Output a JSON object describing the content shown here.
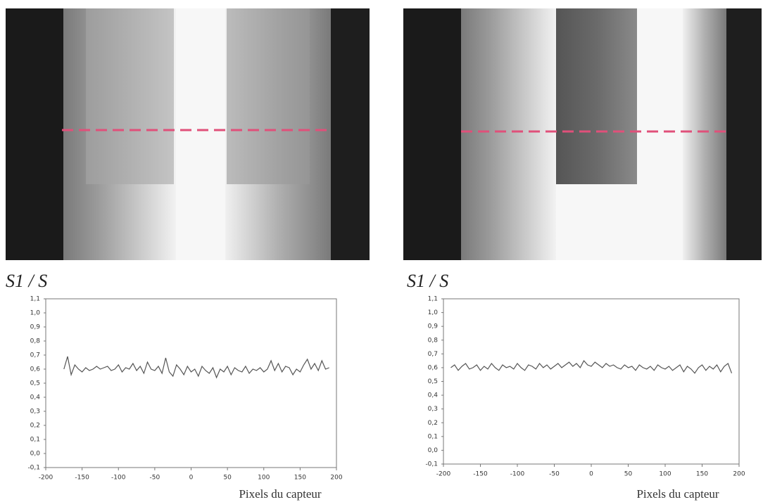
{
  "chart_data": [
    {
      "type": "line",
      "ylabel": "S1 / S",
      "xlabel": "Pixels du capteur",
      "xlim": [
        -200,
        200
      ],
      "xticks": [
        -200,
        -150,
        -100,
        -50,
        0,
        50,
        100,
        150,
        200
      ],
      "ylim": [
        -0.1,
        1.1
      ],
      "yticks": [
        {
          "value": -0.1,
          "label": "-0,1"
        },
        {
          "value": 0,
          "label": "0,0"
        },
        {
          "value": 0.1,
          "label": "0,1"
        },
        {
          "value": 0.2,
          "label": "0,2"
        },
        {
          "value": 0.3,
          "label": "0,3"
        },
        {
          "value": 0.4,
          "label": "0,4"
        },
        {
          "value": 0.5,
          "label": "0,5"
        },
        {
          "value": 0.6,
          "label": "0,6"
        },
        {
          "value": 0.7,
          "label": "0,7"
        },
        {
          "value": 0.8,
          "label": "0,8"
        },
        {
          "value": 0.9,
          "label": "0,9"
        },
        {
          "value": 1.0,
          "label": "1,0"
        },
        {
          "value": 1.1,
          "label": "1,1"
        }
      ],
      "x": [
        -175,
        -170,
        -165,
        -160,
        -155,
        -150,
        -145,
        -140,
        -135,
        -130,
        -125,
        -120,
        -115,
        -110,
        -105,
        -100,
        -95,
        -90,
        -85,
        -80,
        -75,
        -70,
        -65,
        -60,
        -55,
        -50,
        -45,
        -40,
        -35,
        -30,
        -25,
        -20,
        -15,
        -10,
        -5,
        0,
        5,
        10,
        15,
        20,
        25,
        30,
        35,
        40,
        45,
        50,
        55,
        60,
        65,
        70,
        75,
        80,
        85,
        90,
        95,
        100,
        105,
        110,
        115,
        120,
        125,
        130,
        135,
        140,
        145,
        150,
        155,
        160,
        165,
        170,
        175,
        180,
        185,
        190
      ],
      "series": [
        {
          "color": "#555555",
          "values": [
            0.6,
            0.69,
            0.56,
            0.63,
            0.6,
            0.58,
            0.61,
            0.59,
            0.6,
            0.62,
            0.6,
            0.61,
            0.62,
            0.59,
            0.6,
            0.63,
            0.58,
            0.61,
            0.6,
            0.64,
            0.59,
            0.62,
            0.57,
            0.65,
            0.6,
            0.59,
            0.62,
            0.57,
            0.68,
            0.58,
            0.55,
            0.63,
            0.6,
            0.56,
            0.62,
            0.58,
            0.6,
            0.55,
            0.62,
            0.59,
            0.57,
            0.61,
            0.54,
            0.6,
            0.58,
            0.62,
            0.56,
            0.61,
            0.59,
            0.58,
            0.62,
            0.57,
            0.6,
            0.59,
            0.61,
            0.58,
            0.6,
            0.66,
            0.59,
            0.64,
            0.58,
            0.62,
            0.61,
            0.56,
            0.6,
            0.58,
            0.63,
            0.67,
            0.6,
            0.64,
            0.59,
            0.66,
            0.6,
            0.61
          ]
        }
      ]
    },
    {
      "type": "line",
      "ylabel": "S1 / S",
      "xlabel": "Pixels du capteur",
      "xlim": [
        -200,
        200
      ],
      "xticks": [
        -200,
        -150,
        -100,
        -50,
        0,
        50,
        100,
        150,
        200
      ],
      "ylim": [
        -0.1,
        1.1
      ],
      "yticks": [
        {
          "value": -0.1,
          "label": "-0,1"
        },
        {
          "value": 0,
          "label": "0,0"
        },
        {
          "value": 0.1,
          "label": "0,1"
        },
        {
          "value": 0.2,
          "label": "0,2"
        },
        {
          "value": 0.3,
          "label": "0,3"
        },
        {
          "value": 0.4,
          "label": "0,4"
        },
        {
          "value": 0.5,
          "label": "0,5"
        },
        {
          "value": 0.6,
          "label": "0,6"
        },
        {
          "value": 0.7,
          "label": "0,7"
        },
        {
          "value": 0.8,
          "label": "0,8"
        },
        {
          "value": 0.9,
          "label": "0,9"
        },
        {
          "value": 1.0,
          "label": "1,0"
        },
        {
          "value": 1.1,
          "label": "1,1"
        }
      ],
      "x": [
        -190,
        -185,
        -180,
        -175,
        -170,
        -165,
        -160,
        -155,
        -150,
        -145,
        -140,
        -135,
        -130,
        -125,
        -120,
        -115,
        -110,
        -105,
        -100,
        -95,
        -90,
        -85,
        -80,
        -75,
        -70,
        -65,
        -60,
        -55,
        -50,
        -45,
        -40,
        -35,
        -30,
        -25,
        -20,
        -15,
        -10,
        -5,
        0,
        5,
        10,
        15,
        20,
        25,
        30,
        35,
        40,
        45,
        50,
        55,
        60,
        65,
        70,
        75,
        80,
        85,
        90,
        95,
        100,
        105,
        110,
        115,
        120,
        125,
        130,
        135,
        140,
        145,
        150,
        155,
        160,
        165,
        170,
        175,
        180,
        185,
        190
      ],
      "series": [
        {
          "color": "#555555",
          "values": [
            0.6,
            0.62,
            0.58,
            0.61,
            0.63,
            0.59,
            0.6,
            0.62,
            0.58,
            0.61,
            0.59,
            0.63,
            0.6,
            0.58,
            0.62,
            0.6,
            0.61,
            0.59,
            0.63,
            0.6,
            0.58,
            0.62,
            0.61,
            0.59,
            0.63,
            0.6,
            0.62,
            0.59,
            0.61,
            0.63,
            0.6,
            0.62,
            0.64,
            0.61,
            0.63,
            0.6,
            0.65,
            0.62,
            0.61,
            0.64,
            0.62,
            0.6,
            0.63,
            0.61,
            0.62,
            0.6,
            0.59,
            0.62,
            0.6,
            0.61,
            0.58,
            0.62,
            0.6,
            0.59,
            0.61,
            0.58,
            0.62,
            0.6,
            0.59,
            0.61,
            0.58,
            0.6,
            0.62,
            0.57,
            0.61,
            0.59,
            0.56,
            0.6,
            0.62,
            0.58,
            0.61,
            0.59,
            0.62,
            0.57,
            0.61,
            0.63,
            0.56
          ]
        }
      ]
    }
  ]
}
